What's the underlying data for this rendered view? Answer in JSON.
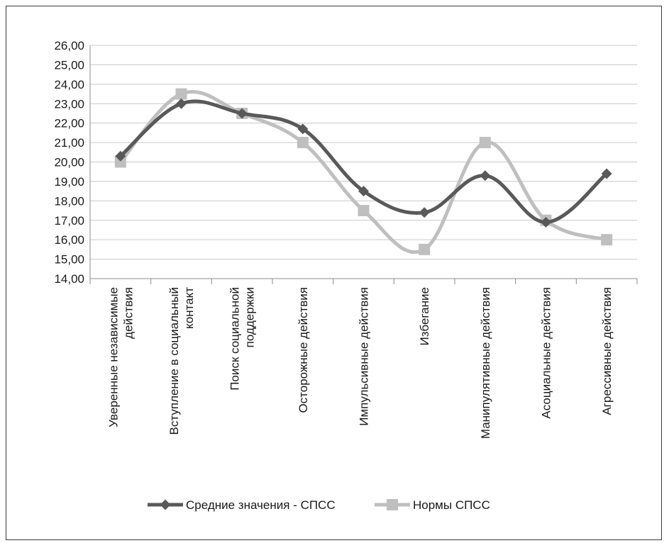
{
  "chart_data": {
    "type": "line",
    "title": "",
    "xlabel": "",
    "ylabel": "",
    "ylim": [
      14,
      26
    ],
    "ytick_step": 1,
    "ytick_labels": [
      "14,00",
      "15,00",
      "16,00",
      "17,00",
      "18,00",
      "19,00",
      "20,00",
      "21,00",
      "22,00",
      "23,00",
      "24,00",
      "25,00",
      "26,00"
    ],
    "grid": "horizontal",
    "legend_position": "bottom",
    "smooth": true,
    "categories": [
      [
        "Уверенные независимые",
        "действия"
      ],
      [
        "Вступление в социальный",
        "контакт"
      ],
      [
        "Поиск социальной",
        "поддержки"
      ],
      [
        "Осторожные действия"
      ],
      [
        "Импульсивные действия"
      ],
      [
        "Избегание"
      ],
      [
        "Манипулятивные действия"
      ],
      [
        "Асоциальные действия"
      ],
      [
        "Агрессивные действия"
      ]
    ],
    "series": [
      {
        "name": "Средние значения - СПСС",
        "color": "#595959",
        "marker": "diamond",
        "values": [
          20.3,
          23.0,
          22.5,
          21.7,
          18.5,
          17.4,
          19.3,
          16.9,
          19.4
        ]
      },
      {
        "name": "Нормы СПСС",
        "color": "#bfbfbf",
        "marker": "square",
        "values": [
          20.0,
          23.5,
          22.5,
          21.0,
          17.5,
          15.5,
          21.0,
          17.0,
          16.0
        ]
      }
    ]
  }
}
